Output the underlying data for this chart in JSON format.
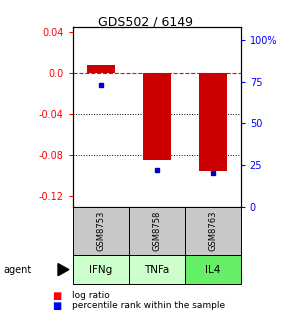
{
  "title": "GDS502 / 6149",
  "samples": [
    "GSM8753",
    "GSM8758",
    "GSM8763"
  ],
  "agents": [
    "IFNg",
    "TNFa",
    "IL4"
  ],
  "log_ratios": [
    0.008,
    -0.085,
    -0.095
  ],
  "percentile_ranks": [
    0.73,
    0.22,
    0.2
  ],
  "ylim_left": [
    -0.13,
    0.045
  ],
  "ylim_right": [
    0.0,
    1.08
  ],
  "left_yticks": [
    0.04,
    0.0,
    -0.04,
    -0.08,
    -0.12
  ],
  "right_yticks": [
    1.0,
    0.75,
    0.5,
    0.25,
    0.0
  ],
  "right_ytick_labels": [
    "100%",
    "75",
    "50",
    "25",
    "0"
  ],
  "dotted_lines": [
    -0.04,
    -0.08
  ],
  "bar_color": "#cc0000",
  "percentile_color": "#0000cc",
  "sample_box_color": "#c8c8c8",
  "agent_box_colors": [
    "#ccffcc",
    "#ccffcc",
    "#66ee66"
  ],
  "bar_width": 0.5,
  "legend_red_label": "log ratio",
  "legend_blue_label": "percentile rank within the sample",
  "agent_label": "agent",
  "figsize": [
    2.9,
    3.36
  ],
  "dpi": 100
}
